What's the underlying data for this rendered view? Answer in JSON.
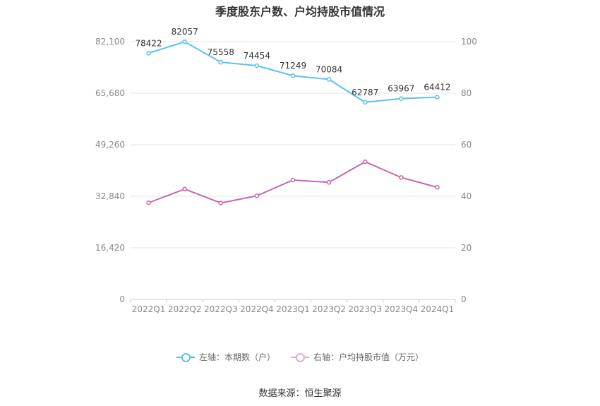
{
  "chart_data": {
    "type": "line",
    "title": "季度股东户数、户均持股市值情况",
    "categories": [
      "2022Q1",
      "2022Q2",
      "2022Q3",
      "2022Q4",
      "2023Q1",
      "2023Q2",
      "2023Q3",
      "2023Q4",
      "2024Q1"
    ],
    "left_axis": {
      "min": 0,
      "max": 82100,
      "ticks": [
        "0",
        "16,420",
        "32,840",
        "49,260",
        "65,680",
        "82,100"
      ]
    },
    "right_axis": {
      "min": 0,
      "max": 100,
      "ticks": [
        "0",
        "20",
        "40",
        "60",
        "80",
        "100"
      ]
    },
    "series": [
      {
        "name": "左轴：本期数（户）",
        "axis": "left",
        "color": "#5bc0eb",
        "values": [
          78422,
          82057,
          75558,
          74454,
          71249,
          70084,
          62787,
          63967,
          64412
        ],
        "labels": [
          "78422",
          "82057",
          "75558",
          "74454",
          "71249",
          "70084",
          "62787",
          "63967",
          "64412"
        ]
      },
      {
        "name": "右轴：户均持股市值（万元）",
        "axis": "right",
        "color": "#c966a9",
        "values": [
          37.5,
          42.8,
          37.4,
          40.2,
          46.3,
          45.4,
          53.4,
          47.3,
          43.5
        ]
      }
    ],
    "grid": true,
    "legend_position": "bottom"
  },
  "source_text": "数据来源：恒生聚源"
}
